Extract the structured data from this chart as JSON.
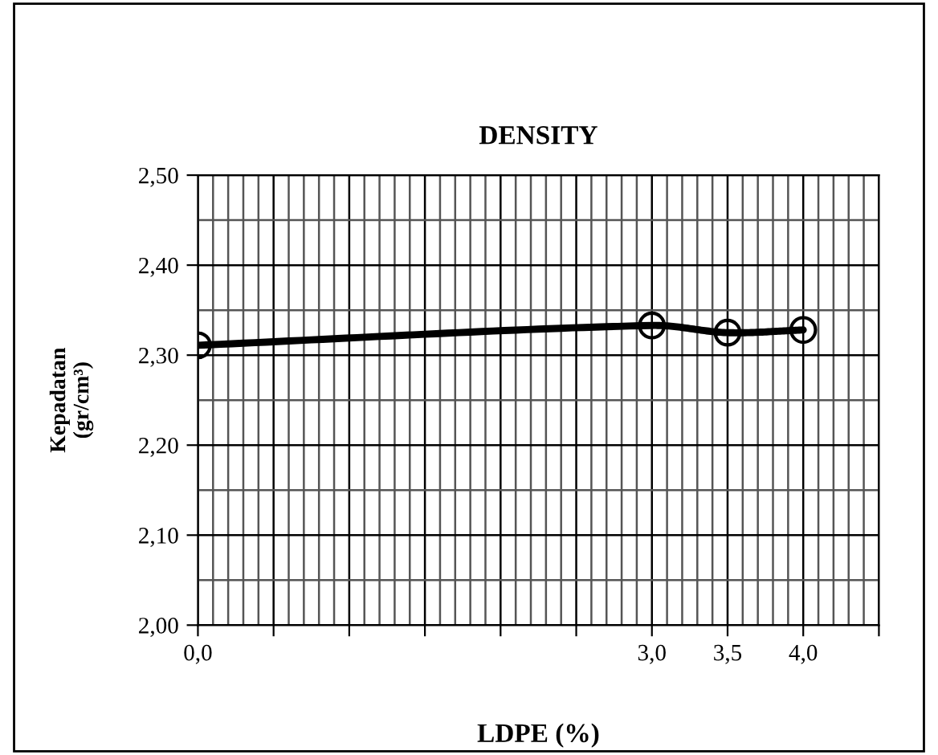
{
  "chart_data": {
    "type": "line",
    "title": "DENSITY",
    "xlabel": "LDPE (%)",
    "ylabel": "Kepadatan\n(gr/cm³)",
    "x": [
      0.0,
      3.0,
      3.5,
      4.0
    ],
    "series": [
      {
        "color": "#000000",
        "values": [
          2.311,
          2.333,
          2.325,
          2.328
        ]
      }
    ],
    "xlim": [
      0,
      4.5
    ],
    "xticks": [
      {
        "value": 0,
        "label": "0,0"
      },
      {
        "value": 0.5,
        "label": null
      },
      {
        "value": 1.0,
        "label": null
      },
      {
        "value": 1.5,
        "label": null
      },
      {
        "value": 2.0,
        "label": null
      },
      {
        "value": 2.5,
        "label": null
      },
      {
        "value": 3.0,
        "label": "3,0"
      },
      {
        "value": 3.5,
        "label": "3,5"
      },
      {
        "value": 4.0,
        "label": "4,0"
      },
      {
        "value": 4.5,
        "label": null
      }
    ],
    "ylim": [
      2.0,
      2.5
    ],
    "yticks": [
      {
        "value": 2.0,
        "label": "2,00"
      },
      {
        "value": 2.1,
        "label": "2,10"
      },
      {
        "value": 2.2,
        "label": "2,20"
      },
      {
        "value": 2.3,
        "label": "2,30"
      },
      {
        "value": 2.4,
        "label": "2,40"
      },
      {
        "value": 2.5,
        "label": "2,50"
      }
    ],
    "grid": true,
    "marker": "circle",
    "line_style": "solid"
  }
}
